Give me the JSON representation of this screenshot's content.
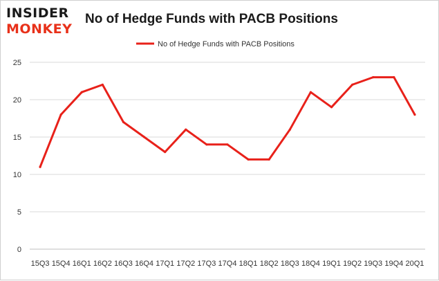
{
  "logo": {
    "line1": "INSIDER",
    "line2": "MONKEY"
  },
  "colors": {
    "series": "#e8211a",
    "grid": "#d9d9d9",
    "axis": "#bfbfbf",
    "logo_accent": "#e8311a",
    "text": "#1a1a1a"
  },
  "chart_data": {
    "type": "line",
    "title": "No of Hedge Funds with PACB Positions",
    "xlabel": "",
    "ylabel": "",
    "categories": [
      "15Q3",
      "15Q4",
      "16Q1",
      "16Q2",
      "16Q3",
      "16Q4",
      "17Q1",
      "17Q2",
      "17Q3",
      "17Q4",
      "18Q1",
      "18Q2",
      "18Q3",
      "18Q4",
      "19Q1",
      "19Q2",
      "19Q3",
      "19Q4",
      "20Q1"
    ],
    "series": [
      {
        "name": "No of Hedge Funds with PACB Positions",
        "values": [
          11,
          18,
          21,
          22,
          17,
          15,
          13,
          16,
          14,
          14,
          12,
          12,
          16,
          21,
          19,
          22,
          23,
          23,
          18
        ]
      }
    ],
    "ylim": [
      0,
      25
    ],
    "yticks": [
      0,
      5,
      10,
      15,
      20,
      25
    ],
    "grid": true,
    "legend": "top-center"
  }
}
